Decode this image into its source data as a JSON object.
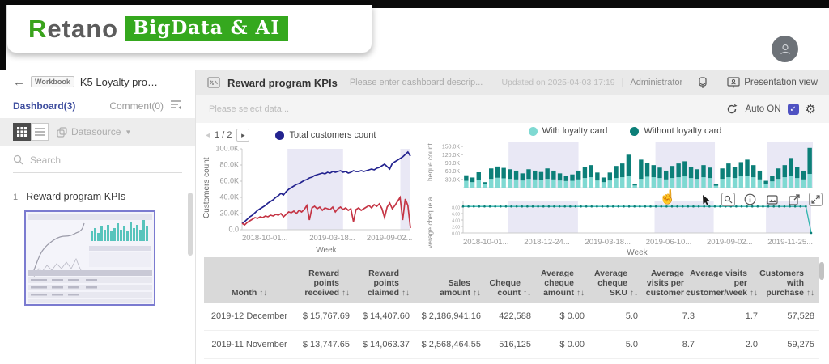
{
  "logo": {
    "brand_r": "R",
    "brand_rest": "etano",
    "badge": "BigData & AI"
  },
  "sidebar": {
    "back": "←",
    "workbook_badge": "Workbook",
    "title": "K5 Loyalty pro…",
    "tab_dashboard": "Dashboard(3)",
    "tab_comment": "Comment(0)",
    "datasource_label": "Datasource",
    "search_placeholder": "Search",
    "item_number": "1",
    "item_label": "Reward program KPIs"
  },
  "main_header": {
    "title": "Reward program KPIs",
    "description_placeholder": "Please enter dashboard descrip...",
    "updated": "Updated on 2025-04-03 17:19",
    "separator": "|",
    "user": "Administrator",
    "presentation_label": "Presentation view"
  },
  "filter_row": {
    "placeholder": "Please select data...",
    "auto_label": "Auto ON",
    "checkbox_check": "✓",
    "gear": "⚙"
  },
  "charts_ui": {
    "pagination_prev": "◂",
    "pagination_text": "1 / 2",
    "pagination_next": "▸",
    "colors": {
      "navy": "#23238f",
      "red": "#c53545",
      "teal_light": "#7fd9d2",
      "teal_dark": "#0c7f78",
      "band": "#e9e8f5",
      "accent_purple": "#4f52c2"
    }
  },
  "chart_data": [
    {
      "type": "line",
      "legend": [
        {
          "name": "Total customers count",
          "color": "#23238f"
        }
      ],
      "ylabel": "Customers count",
      "xlabel": "Week",
      "unit": "thousands",
      "ylim": [
        0,
        100
      ],
      "yticks": [
        {
          "v": 100,
          "label": "100.0K"
        },
        {
          "v": 80,
          "label": "80.0K"
        },
        {
          "v": 60,
          "label": "60.0K"
        },
        {
          "v": 40,
          "label": "40.0K"
        },
        {
          "v": 20,
          "label": "20.0K"
        },
        {
          "v": 0,
          "label": "0.0"
        }
      ],
      "xticks": [
        {
          "f": 0.0,
          "label": "2018-10-01..."
        },
        {
          "f": 0.4,
          "label": "2019-03-18..."
        },
        {
          "f": 0.74,
          "label": "2019-09-02..."
        }
      ],
      "bands": [
        [
          0.27,
          0.6
        ],
        [
          0.94,
          1.0
        ]
      ],
      "series": [
        {
          "name": "Total customers count",
          "color": "#23238f",
          "values": [
            8,
            10,
            13,
            16,
            18,
            21,
            24,
            26,
            28,
            30,
            33,
            35,
            37,
            40,
            42,
            45,
            43,
            47,
            50,
            52,
            54,
            56,
            57,
            59,
            61,
            62,
            64,
            65,
            67,
            68,
            69,
            70,
            69,
            71,
            70,
            72,
            71,
            72,
            73,
            71,
            72,
            70,
            71,
            73,
            72,
            72,
            73,
            72,
            73,
            74,
            75,
            74,
            76,
            77,
            79,
            81,
            78,
            75,
            82,
            84,
            86,
            88,
            90,
            93,
            96,
            91
          ]
        },
        {
          "name": "",
          "color": "#c53545",
          "values": [
            8,
            6,
            9,
            11,
            13,
            15,
            14,
            16,
            15,
            17,
            16,
            18,
            17,
            19,
            18,
            20,
            16,
            19,
            22,
            21,
            23,
            20,
            24,
            22,
            25,
            30,
            12,
            27,
            29,
            26,
            28,
            24,
            27,
            26,
            25,
            28,
            22,
            26,
            28,
            25,
            27,
            24,
            26,
            10,
            25,
            27,
            24,
            26,
            28,
            30,
            27,
            31,
            29,
            32,
            26,
            15,
            28,
            33,
            26,
            30,
            35,
            40,
            12,
            38,
            30,
            2
          ]
        }
      ]
    },
    {
      "type": "stacked-bar",
      "legend": [
        {
          "name": "With loyalty card",
          "color": "#7fd9d2"
        },
        {
          "name": "Without loyalty card",
          "color": "#0c7f78"
        }
      ],
      "ylabel_visible": "heque count",
      "ylabel": "Cheque count",
      "unit": "thousands",
      "ylim": [
        0,
        165
      ],
      "yticks": [
        {
          "v": 150,
          "label": "150.0K"
        },
        {
          "v": 120,
          "label": "120.0K"
        },
        {
          "v": 90,
          "label": "90.0K"
        },
        {
          "v": 60,
          "label": "60.0K"
        },
        {
          "v": 30,
          "label": "30.0K"
        }
      ],
      "bands": [
        [
          0.13,
          0.33
        ],
        [
          0.55,
          0.72
        ],
        [
          0.87,
          1.0
        ]
      ],
      "series": [
        {
          "name": "With loyalty card",
          "color": "#7fd9d2",
          "values": [
            25,
            20,
            28,
            12,
            32,
            36,
            34,
            32,
            30,
            26,
            32,
            30,
            28,
            32,
            30,
            26,
            24,
            25,
            30,
            35,
            38,
            26,
            20,
            26,
            35,
            38,
            44,
            8,
            32,
            40,
            38,
            35,
            30,
            35,
            38,
            41,
            35,
            32,
            38,
            35,
            7,
            32,
            38,
            35,
            41,
            44,
            38,
            30,
            14,
            23,
            32,
            38,
            44,
            35,
            30,
            50
          ]
        },
        {
          "name": "Without loyalty card",
          "color": "#0c7f78",
          "values": [
            20,
            17,
            28,
            8,
            38,
            41,
            38,
            35,
            32,
            26,
            35,
            32,
            29,
            38,
            32,
            26,
            20,
            23,
            32,
            41,
            44,
            29,
            17,
            29,
            44,
            50,
            76,
            6,
            70,
            50,
            44,
            38,
            32,
            44,
            50,
            55,
            41,
            35,
            44,
            38,
            6,
            38,
            50,
            41,
            52,
            58,
            44,
            32,
            11,
            20,
            38,
            44,
            64,
            41,
            32,
            95
          ]
        }
      ]
    },
    {
      "type": "line",
      "ylabel_visible": "verage cheque a",
      "ylabel": "Average cheque amount",
      "xlabel": "Week",
      "ylim": [
        0,
        10
      ],
      "yticks": [
        {
          "v": 8,
          "label": "8.00"
        },
        {
          "v": 6,
          "label": "6.00"
        },
        {
          "v": 4,
          "label": "4.00"
        },
        {
          "v": 2,
          "label": "2.00"
        },
        {
          "v": 0,
          "label": "0.00"
        }
      ],
      "xticks": [
        {
          "f": 0.0,
          "label": "2018-10-01..."
        },
        {
          "f": 0.175,
          "label": "2018-12-24..."
        },
        {
          "f": 0.35,
          "label": "2019-03-18..."
        },
        {
          "f": 0.525,
          "label": "2019-06-10..."
        },
        {
          "f": 0.7,
          "label": "2019-09-02..."
        },
        {
          "f": 0.875,
          "label": "2019-11-25..."
        }
      ],
      "bands": [
        [
          0.13,
          0.33
        ],
        [
          0.55,
          0.72
        ],
        [
          0.87,
          1.0
        ]
      ],
      "series": [
        {
          "name": "Average cheque amount",
          "color": "#2fb5ae",
          "dot_color": "#0c7f78",
          "dots": true,
          "values": [
            8.2,
            8.2,
            8.2,
            8.2,
            8.2,
            8.2,
            8.2,
            8.2,
            8.2,
            8.2,
            8.2,
            8.2,
            8.2,
            8.2,
            8.2,
            8.2,
            8.2,
            8.2,
            8.2,
            8.2,
            8.2,
            8.2,
            8.2,
            8.2,
            8.2,
            8.2,
            8.2,
            8.2,
            8.2,
            8.2,
            8.2,
            8.2,
            8.2,
            8.2,
            8.2,
            8.2,
            8.2,
            8.2,
            8.2,
            8.2,
            8.2,
            8.2,
            8.2,
            8.2,
            8.2,
            8.2,
            8.2,
            8.2,
            8.2,
            8.2,
            8.2,
            8.2,
            8.2,
            8.2,
            8.2,
            8.2,
            8.2,
            8.2,
            8.2,
            8.2,
            8.2,
            8.2,
            8.2,
            8.2,
            8.2,
            0
          ]
        }
      ]
    }
  ],
  "table": {
    "columns": [
      {
        "label": "Month",
        "sort": "↑↓",
        "width": 112
      },
      {
        "label": "Reward points received",
        "sort": "↑↓",
        "width": 74
      },
      {
        "label": "Reward points claimed",
        "sort": "↑↓",
        "width": 74
      },
      {
        "label": "Sales amount",
        "sort": "↑↓",
        "width": 88
      },
      {
        "label": "Cheque count",
        "sort": "↑↓",
        "width": 62
      },
      {
        "label": "Average cheque amount",
        "sort": "↑↓",
        "width": 66
      },
      {
        "label": "Average cheque SKU",
        "sort": "↑↓",
        "width": 66
      },
      {
        "label": "Average visits per customer",
        "sort": "↑↓",
        "width": 70
      },
      {
        "label": "Average visits per customer/week",
        "sort": "↑↓",
        "width": 78
      },
      {
        "label": "Customers with purchase",
        "sort": "↑↓",
        "width": 70
      }
    ],
    "rows": [
      [
        "2019-12 December",
        "$ 15,767.69",
        "$ 14,407.60",
        "$ 2,186,941.16",
        "422,588",
        "$ 0.00",
        "5.0",
        "7.3",
        "1.7",
        "57,528"
      ],
      [
        "2019-11 November",
        "$ 13,747.65",
        "$ 14,063.37",
        "$ 2,568,464.55",
        "516,125",
        "$ 0.00",
        "5.0",
        "8.7",
        "2.0",
        "59,275"
      ]
    ]
  }
}
